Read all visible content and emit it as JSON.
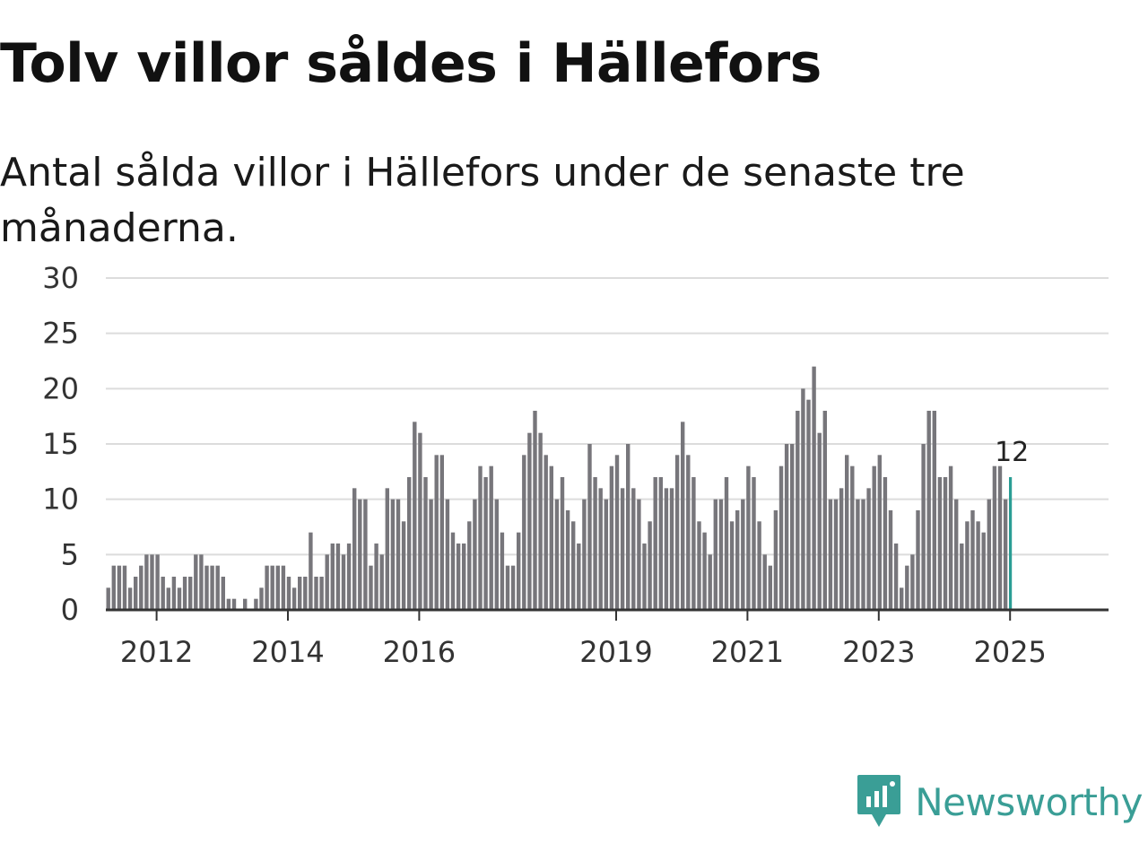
{
  "chart_data": {
    "type": "bar",
    "title": "Tolv villor såldes i Hällefors",
    "subtitle": "Antal sålda villor i Hällefors under de senaste tre månaderna.",
    "ylim": [
      0,
      30
    ],
    "yticks": [
      0,
      5,
      10,
      15,
      20,
      25,
      30
    ],
    "xticks": [
      {
        "label": "2012",
        "index": 9
      },
      {
        "label": "2014",
        "index": 33
      },
      {
        "label": "2016",
        "index": 57
      },
      {
        "label": "2019",
        "index": 93
      },
      {
        "label": "2021",
        "index": 117
      },
      {
        "label": "2023",
        "index": 141
      },
      {
        "label": "2025",
        "index": 165
      }
    ],
    "bar_color": "#77767b",
    "highlight_color": "#2a9d94",
    "highlight_label": "12",
    "values": [
      2,
      4,
      4,
      4,
      2,
      3,
      4,
      5,
      5,
      5,
      3,
      2,
      3,
      2,
      3,
      3,
      5,
      5,
      4,
      4,
      4,
      3,
      1,
      1,
      0,
      1,
      0,
      1,
      2,
      4,
      4,
      4,
      4,
      3,
      2,
      3,
      3,
      7,
      3,
      3,
      5,
      6,
      6,
      5,
      6,
      11,
      10,
      10,
      4,
      6,
      5,
      11,
      10,
      10,
      8,
      12,
      17,
      16,
      12,
      10,
      14,
      14,
      10,
      7,
      6,
      6,
      8,
      10,
      13,
      12,
      13,
      10,
      7,
      4,
      4,
      7,
      14,
      16,
      18,
      16,
      14,
      13,
      10,
      12,
      9,
      8,
      6,
      10,
      15,
      12,
      11,
      10,
      13,
      14,
      11,
      15,
      11,
      10,
      6,
      8,
      12,
      12,
      11,
      11,
      14,
      17,
      14,
      12,
      8,
      7,
      5,
      10,
      10,
      12,
      8,
      9,
      10,
      13,
      12,
      8,
      5,
      4,
      9,
      13,
      15,
      15,
      18,
      20,
      19,
      22,
      16,
      18,
      10,
      10,
      11,
      14,
      13,
      10,
      10,
      11,
      13,
      14,
      12,
      9,
      6,
      2,
      4,
      5,
      9,
      15,
      18,
      18,
      12,
      12,
      13,
      10,
      6,
      8,
      9,
      8,
      7,
      10,
      13,
      13,
      10,
      12
    ]
  },
  "brand": {
    "name": "Newsworthy",
    "icon": "newsworthy-logo-icon",
    "color": "#3a9e96"
  }
}
